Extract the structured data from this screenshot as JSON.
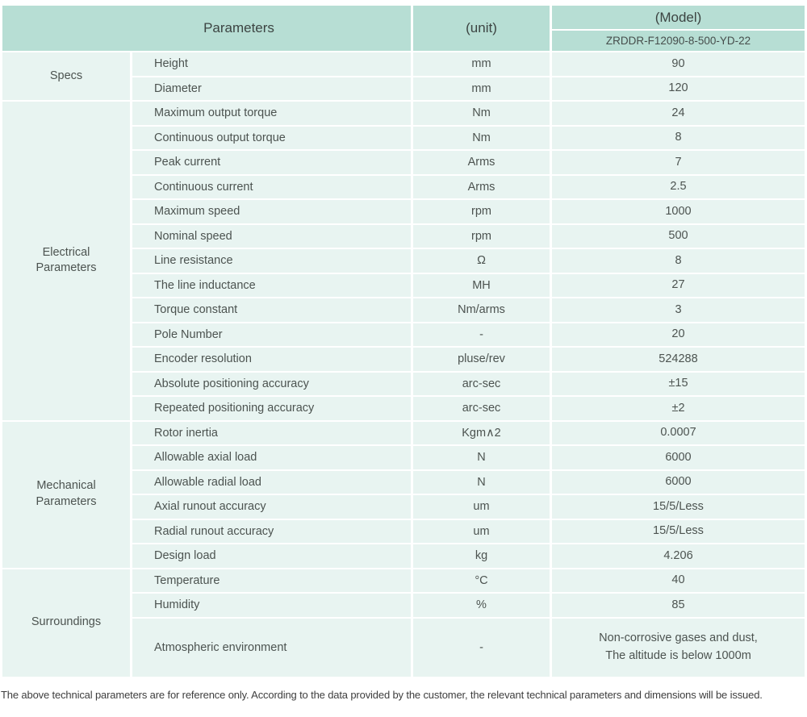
{
  "header": {
    "parameters_label": "Parameters",
    "unit_label": "(unit)",
    "model_label": "(Model)",
    "model_value": "ZRDDR-F12090-8-500-YD-22"
  },
  "sections": [
    {
      "name": "Specs",
      "rows": [
        [
          "Height",
          "mm",
          "90"
        ],
        [
          "Diameter",
          "mm",
          "120"
        ]
      ]
    },
    {
      "name": "Electrical\nParameters",
      "rows": [
        [
          "Maximum output torque",
          "Nm",
          "24"
        ],
        [
          "Continuous output torque",
          "Nm",
          "8"
        ],
        [
          "Peak current",
          "Arms",
          "7"
        ],
        [
          "Continuous current",
          "Arms",
          "2.5"
        ],
        [
          "Maximum speed",
          "rpm",
          "1000"
        ],
        [
          "Nominal speed",
          "rpm",
          "500"
        ],
        [
          "Line resistance",
          "Ω",
          "8"
        ],
        [
          "The line inductance",
          "MH",
          "27"
        ],
        [
          "Torque constant",
          "Nm/arms",
          "3"
        ],
        [
          "Pole Number",
          "-",
          "20"
        ],
        [
          "Encoder resolution",
          "pluse/rev",
          "524288"
        ],
        [
          "Absolute positioning accuracy",
          "arc-sec",
          "±15"
        ],
        [
          "Repeated positioning accuracy",
          "arc-sec",
          "±2"
        ]
      ]
    },
    {
      "name": "Mechanical\nParameters",
      "rows": [
        [
          "Rotor inertia",
          "Kgm∧2",
          "0.0007"
        ],
        [
          "Allowable axial load",
          "N",
          "6000"
        ],
        [
          "Allowable radial load",
          "N",
          "6000"
        ],
        [
          "Axial runout accuracy",
          "um",
          "15/5/Less"
        ],
        [
          "Radial runout accuracy",
          "um",
          "15/5/Less"
        ],
        [
          "Design load",
          "kg",
          "4.206"
        ]
      ]
    },
    {
      "name": "Surroundings",
      "rows": [
        [
          "Temperature",
          "°C",
          "40"
        ],
        [
          "Humidity",
          "%",
          "85"
        ],
        [
          "Atmospheric environment",
          "-",
          "Non-corrosive gases and dust,\nThe altitude is below 1000m"
        ]
      ]
    }
  ],
  "footnote": "The above technical parameters are for reference only. According to the data provided by the customer, the relevant technical parameters and dimensions will be issued.",
  "colors": {
    "header_bg": "#b7ded4",
    "cell_bg": "#e8f4f1",
    "body_text": "#4c5350",
    "header_text": "#3c4442",
    "footnote_text": "#3e3e3e",
    "page_bg": "#ffffff"
  }
}
